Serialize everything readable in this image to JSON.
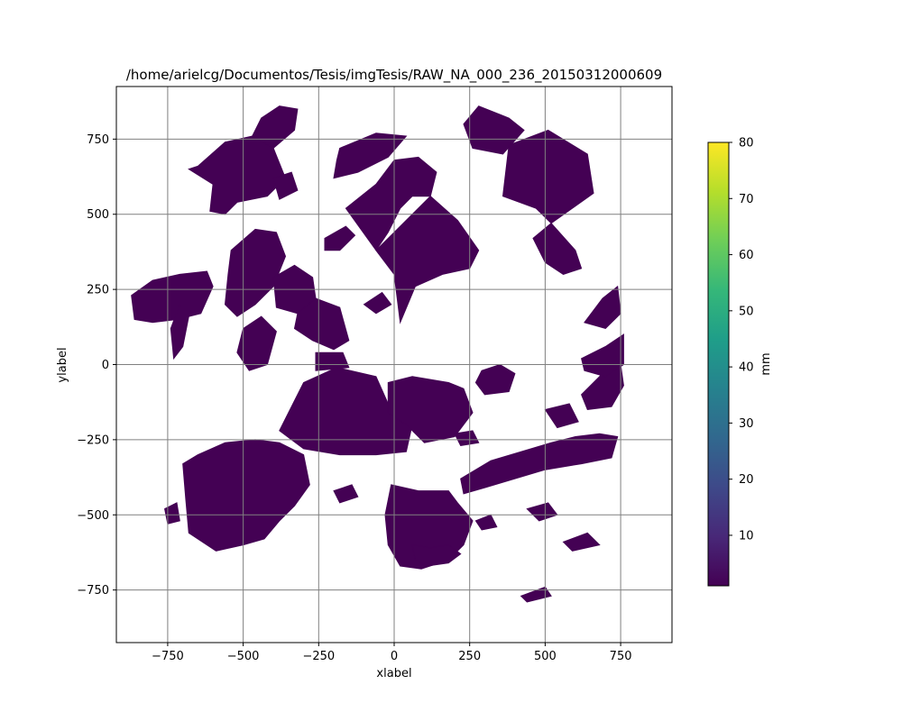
{
  "chart_data": {
    "type": "heatmap",
    "title": "/home/arielcg/Documentos/Tesis/imgTesis/RAW_NA_000_236_20150312000609",
    "xlabel": "xlabel",
    "ylabel": "ylabel",
    "xlim": [
      -920,
      920
    ],
    "ylim": [
      -925,
      925
    ],
    "grid": true,
    "x_ticks": [
      {
        "value": -750,
        "label": "−750"
      },
      {
        "value": -500,
        "label": "−500"
      },
      {
        "value": -250,
        "label": "−250"
      },
      {
        "value": 0,
        "label": "0"
      },
      {
        "value": 250,
        "label": "250"
      },
      {
        "value": 500,
        "label": "500"
      },
      {
        "value": 750,
        "label": "750"
      }
    ],
    "y_ticks": [
      {
        "value": 750,
        "label": "750"
      },
      {
        "value": 500,
        "label": "500"
      },
      {
        "value": 250,
        "label": "250"
      },
      {
        "value": 0,
        "label": "0"
      },
      {
        "value": -250,
        "label": "−250"
      },
      {
        "value": -500,
        "label": "−500"
      },
      {
        "value": -750,
        "label": "−750"
      }
    ],
    "colorbar": {
      "label": "mm",
      "colormap": "viridis",
      "range": [
        1,
        80
      ],
      "ticks": [
        {
          "value": 10,
          "label": "10"
        },
        {
          "value": 20,
          "label": "20"
        },
        {
          "value": 30,
          "label": "30"
        },
        {
          "value": 40,
          "label": "40"
        },
        {
          "value": 50,
          "label": "50"
        },
        {
          "value": 60,
          "label": "60"
        },
        {
          "value": 70,
          "label": "70"
        },
        {
          "value": 80,
          "label": "80"
        }
      ],
      "colors": [
        "#440154",
        "#482878",
        "#3e4989",
        "#31688e",
        "#26828e",
        "#1f9e89",
        "#35b779",
        "#6ece58",
        "#b5de2b",
        "#fde725"
      ]
    },
    "regions": [
      {
        "value": 2,
        "points": [
          [
            -650,
            660
          ],
          [
            -560,
            740
          ],
          [
            -470,
            760
          ],
          [
            -400,
            720
          ],
          [
            -360,
            620
          ],
          [
            -420,
            560
          ],
          [
            -520,
            540
          ],
          [
            -560,
            500
          ],
          [
            -610,
            510
          ],
          [
            -600,
            600
          ],
          [
            -680,
            650
          ]
        ]
      },
      {
        "value": 3,
        "points": [
          [
            -470,
            760
          ],
          [
            -440,
            820
          ],
          [
            -380,
            860
          ],
          [
            -320,
            850
          ],
          [
            -330,
            780
          ],
          [
            -400,
            720
          ]
        ]
      },
      {
        "value": 2,
        "points": [
          [
            -400,
            620
          ],
          [
            -340,
            640
          ],
          [
            -320,
            580
          ],
          [
            -380,
            550
          ]
        ]
      },
      {
        "value": 2,
        "points": [
          [
            -180,
            720
          ],
          [
            -60,
            770
          ],
          [
            40,
            760
          ],
          [
            -20,
            690
          ],
          [
            -120,
            640
          ],
          [
            -200,
            620
          ],
          [
            -190,
            680
          ]
        ]
      },
      {
        "value": 2,
        "points": [
          [
            -160,
            520
          ],
          [
            -60,
            600
          ],
          [
            0,
            680
          ],
          [
            80,
            690
          ],
          [
            140,
            640
          ],
          [
            120,
            560
          ],
          [
            60,
            560
          ],
          [
            20,
            520
          ],
          [
            -20,
            440
          ],
          [
            -60,
            380
          ]
        ]
      },
      {
        "value": 3,
        "points": [
          [
            -60,
            380
          ],
          [
            0,
            300
          ],
          [
            20,
            140
          ],
          [
            70,
            260
          ],
          [
            160,
            300
          ],
          [
            250,
            320
          ],
          [
            280,
            380
          ],
          [
            210,
            480
          ],
          [
            120,
            560
          ]
        ]
      },
      {
        "value": 2,
        "points": [
          [
            280,
            860
          ],
          [
            380,
            820
          ],
          [
            430,
            780
          ],
          [
            360,
            700
          ],
          [
            260,
            720
          ],
          [
            230,
            800
          ]
        ]
      },
      {
        "value": 2,
        "points": [
          [
            380,
            730
          ],
          [
            510,
            780
          ],
          [
            640,
            700
          ],
          [
            660,
            570
          ],
          [
            590,
            520
          ],
          [
            520,
            470
          ],
          [
            470,
            520
          ],
          [
            360,
            560
          ]
        ]
      },
      {
        "value": 2,
        "points": [
          [
            520,
            470
          ],
          [
            600,
            380
          ],
          [
            620,
            320
          ],
          [
            560,
            300
          ],
          [
            500,
            340
          ],
          [
            460,
            420
          ]
        ]
      },
      {
        "value": 2,
        "points": [
          [
            -870,
            230
          ],
          [
            -800,
            280
          ],
          [
            -710,
            300
          ],
          [
            -620,
            310
          ],
          [
            -600,
            260
          ],
          [
            -640,
            170
          ],
          [
            -720,
            150
          ],
          [
            -800,
            140
          ],
          [
            -860,
            150
          ]
        ]
      },
      {
        "value": 2,
        "points": [
          [
            -740,
            120
          ],
          [
            -710,
            200
          ],
          [
            -680,
            160
          ],
          [
            -700,
            60
          ],
          [
            -730,
            20
          ]
        ]
      },
      {
        "value": 2,
        "points": [
          [
            -540,
            380
          ],
          [
            -460,
            450
          ],
          [
            -390,
            440
          ],
          [
            -360,
            360
          ],
          [
            -400,
            260
          ],
          [
            -460,
            200
          ],
          [
            -520,
            160
          ],
          [
            -560,
            200
          ],
          [
            -550,
            300
          ]
        ]
      },
      {
        "value": 2,
        "points": [
          [
            -500,
            120
          ],
          [
            -440,
            160
          ],
          [
            -390,
            110
          ],
          [
            -420,
            0
          ],
          [
            -480,
            -20
          ],
          [
            -520,
            40
          ]
        ]
      },
      {
        "value": 2,
        "points": [
          [
            -400,
            290
          ],
          [
            -330,
            330
          ],
          [
            -270,
            290
          ],
          [
            -260,
            220
          ],
          [
            -320,
            170
          ],
          [
            -390,
            190
          ]
        ]
      },
      {
        "value": 2,
        "points": [
          [
            -320,
            170
          ],
          [
            -260,
            220
          ],
          [
            -180,
            190
          ],
          [
            -150,
            80
          ],
          [
            -200,
            50
          ],
          [
            -270,
            80
          ],
          [
            -330,
            120
          ]
        ]
      },
      {
        "value": 2,
        "points": [
          [
            -260,
            40
          ],
          [
            -170,
            40
          ],
          [
            -150,
            -10
          ],
          [
            -260,
            -20
          ]
        ]
      },
      {
        "value": 2,
        "points": [
          [
            -360,
            -180
          ],
          [
            -300,
            -60
          ],
          [
            -190,
            -10
          ],
          [
            -60,
            -40
          ],
          [
            -20,
            -130
          ],
          [
            20,
            -160
          ],
          [
            60,
            -200
          ],
          [
            40,
            -290
          ],
          [
            -60,
            -300
          ],
          [
            -180,
            -300
          ],
          [
            -300,
            -280
          ],
          [
            -380,
            -220
          ]
        ]
      },
      {
        "value": 2,
        "points": [
          [
            -20,
            -60
          ],
          [
            60,
            -40
          ],
          [
            180,
            -60
          ],
          [
            230,
            -80
          ],
          [
            260,
            -160
          ],
          [
            200,
            -240
          ],
          [
            100,
            -260
          ],
          [
            40,
            -200
          ],
          [
            -20,
            -160
          ]
        ]
      },
      {
        "value": 2,
        "points": [
          [
            -650,
            -300
          ],
          [
            -560,
            -260
          ],
          [
            -460,
            -250
          ],
          [
            -380,
            -260
          ],
          [
            -300,
            -300
          ],
          [
            -280,
            -400
          ],
          [
            -330,
            -470
          ],
          [
            -380,
            -520
          ],
          [
            -430,
            -580
          ],
          [
            -500,
            -600
          ],
          [
            -590,
            -620
          ],
          [
            -680,
            -560
          ],
          [
            -690,
            -450
          ],
          [
            -700,
            -330
          ]
        ]
      },
      {
        "value": 2,
        "points": [
          [
            -10,
            -400
          ],
          [
            80,
            -420
          ],
          [
            180,
            -420
          ],
          [
            210,
            -460
          ],
          [
            260,
            -520
          ],
          [
            230,
            -600
          ],
          [
            180,
            -650
          ],
          [
            90,
            -680
          ],
          [
            20,
            -670
          ],
          [
            -20,
            -600
          ],
          [
            -30,
            -500
          ]
        ]
      },
      {
        "value": 5,
        "points": [
          [
            60,
            -600
          ],
          [
            120,
            -610
          ],
          [
            180,
            -600
          ],
          [
            220,
            -630
          ],
          [
            180,
            -660
          ],
          [
            110,
            -670
          ],
          [
            70,
            -650
          ]
        ]
      },
      {
        "value": 2,
        "points": [
          [
            220,
            -380
          ],
          [
            320,
            -320
          ],
          [
            420,
            -290
          ],
          [
            520,
            -260
          ],
          [
            600,
            -240
          ],
          [
            680,
            -230
          ],
          [
            740,
            -240
          ],
          [
            720,
            -310
          ],
          [
            620,
            -330
          ],
          [
            500,
            -350
          ],
          [
            400,
            -380
          ],
          [
            300,
            -410
          ],
          [
            230,
            -430
          ]
        ]
      },
      {
        "value": 2,
        "points": [
          [
            620,
            -100
          ],
          [
            700,
            -20
          ],
          [
            750,
            0
          ],
          [
            760,
            -70
          ],
          [
            720,
            -140
          ],
          [
            640,
            -150
          ]
        ]
      },
      {
        "value": 2,
        "points": [
          [
            620,
            20
          ],
          [
            700,
            60
          ],
          [
            760,
            100
          ],
          [
            760,
            0
          ],
          [
            700,
            -40
          ],
          [
            630,
            -20
          ]
        ]
      },
      {
        "value": 2,
        "points": [
          [
            630,
            140
          ],
          [
            690,
            220
          ],
          [
            740,
            260
          ],
          [
            750,
            170
          ],
          [
            700,
            120
          ]
        ]
      },
      {
        "value": 2,
        "points": [
          [
            290,
            -20
          ],
          [
            350,
            0
          ],
          [
            400,
            -30
          ],
          [
            380,
            -90
          ],
          [
            300,
            -100
          ],
          [
            270,
            -60
          ]
        ]
      },
      {
        "value": 2,
        "points": [
          [
            500,
            -150
          ],
          [
            580,
            -130
          ],
          [
            610,
            -190
          ],
          [
            540,
            -210
          ]
        ]
      },
      {
        "value": 2,
        "points": [
          [
            -200,
            -420
          ],
          [
            -140,
            -400
          ],
          [
            -120,
            -440
          ],
          [
            -180,
            -460
          ]
        ]
      },
      {
        "value": 2,
        "points": [
          [
            -760,
            -480
          ],
          [
            -720,
            -460
          ],
          [
            -710,
            -520
          ],
          [
            -750,
            -530
          ]
        ]
      },
      {
        "value": 2,
        "points": [
          [
            200,
            -230
          ],
          [
            260,
            -220
          ],
          [
            280,
            -260
          ],
          [
            220,
            -270
          ]
        ]
      },
      {
        "value": 2,
        "points": [
          [
            -230,
            420
          ],
          [
            -160,
            460
          ],
          [
            -130,
            430
          ],
          [
            -180,
            380
          ],
          [
            -230,
            380
          ]
        ]
      },
      {
        "value": 2,
        "points": [
          [
            440,
            -480
          ],
          [
            510,
            -460
          ],
          [
            540,
            -500
          ],
          [
            480,
            -520
          ]
        ]
      },
      {
        "value": 2,
        "points": [
          [
            420,
            -770
          ],
          [
            500,
            -740
          ],
          [
            520,
            -770
          ],
          [
            440,
            -790
          ]
        ]
      },
      {
        "value": 2,
        "points": [
          [
            270,
            -520
          ],
          [
            320,
            -500
          ],
          [
            340,
            -540
          ],
          [
            290,
            -550
          ]
        ]
      },
      {
        "value": 2,
        "points": [
          [
            560,
            -590
          ],
          [
            640,
            -560
          ],
          [
            680,
            -600
          ],
          [
            590,
            -620
          ]
        ]
      },
      {
        "value": 2,
        "points": [
          [
            -100,
            200
          ],
          [
            -40,
            240
          ],
          [
            -10,
            200
          ],
          [
            -60,
            170
          ]
        ]
      }
    ]
  }
}
